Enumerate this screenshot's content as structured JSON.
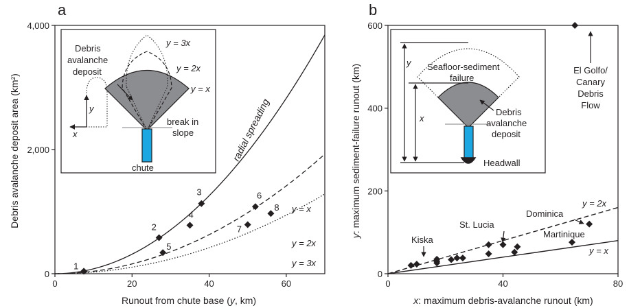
{
  "chart_data": [
    {
      "panel_letter": "a",
      "type": "scatter",
      "xlabel_text": "Runout from chute base (",
      "xlabel_var": "y",
      "xlabel_unit": ", km)",
      "ylabel": "Debris avalanche deposit area (km²)",
      "xlim": [
        0,
        70
      ],
      "ylim": [
        0,
        4000
      ],
      "x_ticks": [
        0,
        20,
        40,
        60
      ],
      "y_ticks": [
        0,
        2000,
        4000
      ],
      "y_tick_labels": [
        "0",
        "2,000",
        "4,000"
      ],
      "points": [
        {
          "label": "1",
          "x": 7.5,
          "y": 40
        },
        {
          "label": "2",
          "x": 27,
          "y": 580
        },
        {
          "label": "3",
          "x": 38,
          "y": 1130
        },
        {
          "label": "4",
          "x": 35,
          "y": 780
        },
        {
          "label": "5",
          "x": 28,
          "y": 340
        },
        {
          "label": "6",
          "x": 52,
          "y": 1080
        },
        {
          "label": "7",
          "x": 50,
          "y": 790
        },
        {
          "label": "8",
          "x": 56,
          "y": 970
        }
      ],
      "curves": [
        {
          "label": "y = x",
          "coef": 0.785,
          "style": "solid"
        },
        {
          "label": "y = 2x",
          "coef": 0.393,
          "style": "dashed"
        },
        {
          "label": "y = 3x",
          "coef": 0.262,
          "style": "dotted"
        }
      ],
      "curve_annotation": "radial spreading",
      "inset": {
        "deposit_label": [
          "Debris",
          "avalanche",
          "deposit"
        ],
        "break_label": [
          "break in",
          "slope"
        ],
        "chute_label": "chute",
        "arc_labels": [
          "y = 3x",
          "y = 2x",
          "y = x"
        ],
        "axis_x": "x",
        "axis_y": "y"
      }
    },
    {
      "panel_letter": "b",
      "type": "scatter",
      "xlabel_var": "x",
      "xlabel_text": ": maximum debris-avalanche runout (km)",
      "ylabel_var": "y",
      "ylabel_text": ": maximum sediment-failure runout (km)",
      "xlim": [
        0,
        80
      ],
      "ylim": [
        0,
        600
      ],
      "x_ticks": [
        0,
        40,
        80
      ],
      "y_ticks": [
        0,
        200,
        400,
        600
      ],
      "points": [
        {
          "x": 8,
          "y": 20
        },
        {
          "x": 10,
          "y": 23
        },
        {
          "x": 17,
          "y": 26
        },
        {
          "x": 17,
          "y": 30
        },
        {
          "x": 17,
          "y": 35
        },
        {
          "x": 22,
          "y": 34
        },
        {
          "x": 24,
          "y": 38
        },
        {
          "x": 26,
          "y": 38
        },
        {
          "x": 35,
          "y": 48
        },
        {
          "x": 35,
          "y": 70
        },
        {
          "x": 40,
          "y": 70
        },
        {
          "x": 44,
          "y": 52
        },
        {
          "x": 45,
          "y": 65
        },
        {
          "x": 64,
          "y": 76
        },
        {
          "x": 70,
          "y": 120
        },
        {
          "x": 65,
          "y": 600
        }
      ],
      "lines": [
        {
          "label": "y = x",
          "slope": 1,
          "style": "solid"
        },
        {
          "label": "y = 2x",
          "slope": 2,
          "style": "dashed"
        }
      ],
      "annotations": [
        "Kiska",
        "St. Lucia",
        "Dominica",
        "Martinique"
      ],
      "el_golfo": [
        "El Golfo/",
        "Canary",
        "Debris",
        "Flow"
      ],
      "inset": {
        "failure_label": [
          "Seafloor-sediment",
          "failure"
        ],
        "deposit_label": [
          "Debris",
          "avalanche",
          "deposit"
        ],
        "headwall_label": "Headwall",
        "dim_y": "y",
        "dim_x": "x"
      }
    }
  ]
}
